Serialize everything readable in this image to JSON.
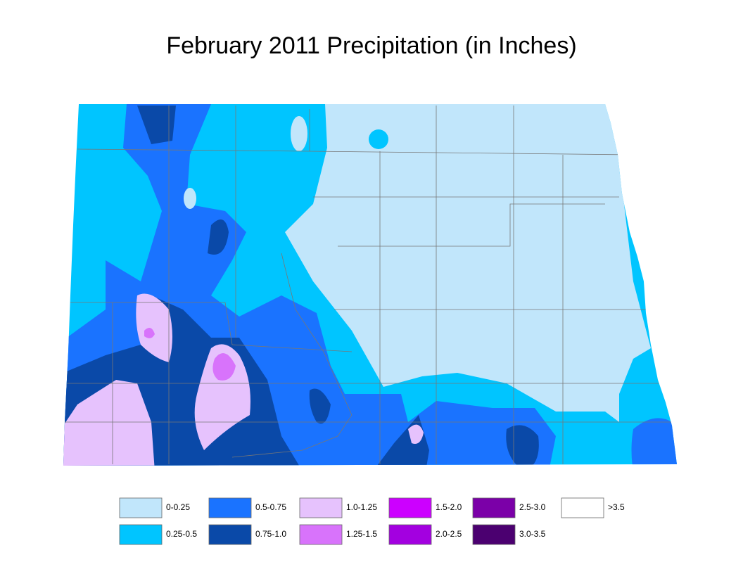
{
  "title": "February 2011 Precipitation (in Inches)",
  "legend": [
    {
      "label": "0-0.25",
      "color": "#c1e6fb"
    },
    {
      "label": "0.25-0.5",
      "color": "#00c5ff"
    },
    {
      "label": "0.5-0.75",
      "color": "#1a73ff"
    },
    {
      "label": "0.75-1.0",
      "color": "#0a49a8"
    },
    {
      "label": "1.0-1.25",
      "color": "#e6c2fd"
    },
    {
      "label": "1.25-1.5",
      "color": "#d873fb"
    },
    {
      "label": "1.5-2.0",
      "color": "#cc00ff"
    },
    {
      "label": "2.0-2.5",
      "color": "#a300e0"
    },
    {
      "label": "2.5-3.0",
      "color": "#7b00a8"
    },
    {
      "label": "3.0-3.5",
      "color": "#4b0070"
    },
    {
      "label": ">3.5",
      "color": "#ffffff"
    }
  ]
}
